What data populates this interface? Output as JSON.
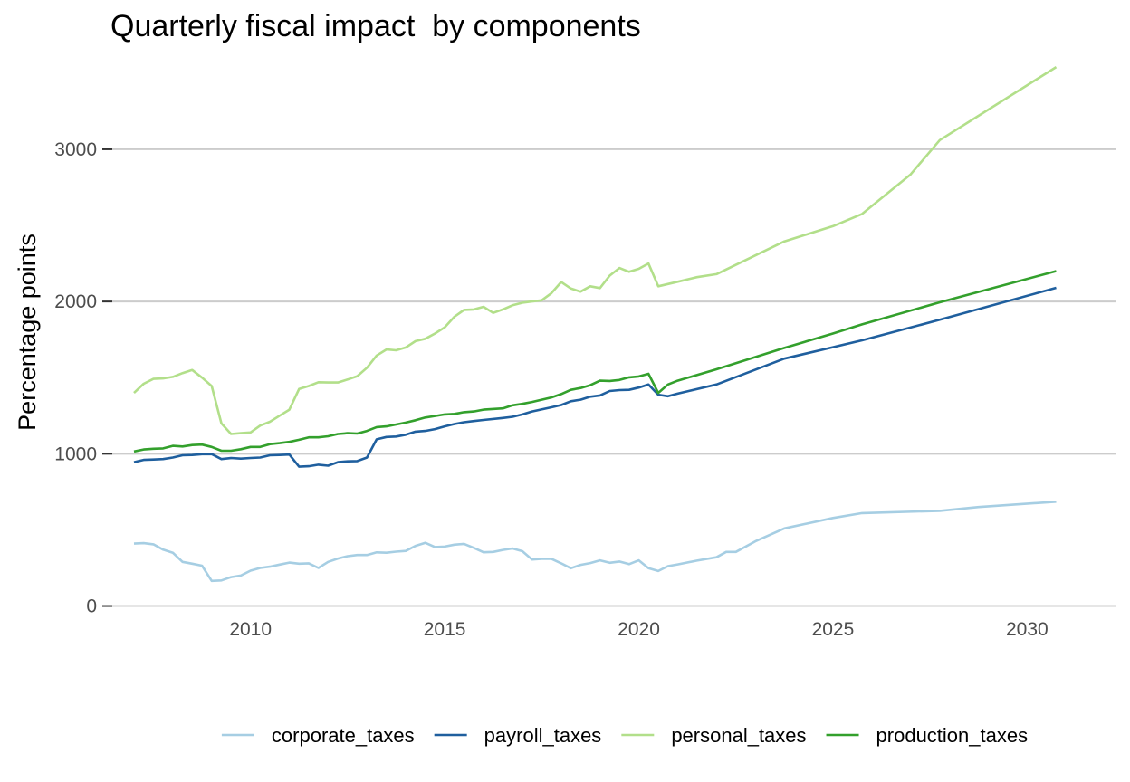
{
  "chart_data": {
    "type": "line",
    "title": "Quarterly fiscal impact  by components",
    "xlabel": "",
    "ylabel": "Percentage points",
    "xlim": [
      2006.3,
      2032.3
    ],
    "ylim": [
      -80,
      3600
    ],
    "x_ticks": [
      2010,
      2015,
      2020,
      2025,
      2030
    ],
    "x_tick_labels": [
      "2010",
      "2015",
      "2020",
      "2025",
      "2030"
    ],
    "y_ticks": [
      0,
      1000,
      2000,
      3000
    ],
    "y_tick_labels": [
      "0",
      "1000",
      "2000",
      "3000"
    ],
    "grid": "horizontal major lines only",
    "legend_position": "bottom",
    "series": [
      {
        "name": "corporate_taxes",
        "color": "#a6cee3",
        "x": [
          2007.0,
          2007.25,
          2007.5,
          2007.75,
          2008.0,
          2008.25,
          2008.5,
          2008.75,
          2009.0,
          2009.25,
          2009.5,
          2009.75,
          2010.0,
          2010.25,
          2010.5,
          2010.75,
          2011.0,
          2011.25,
          2011.5,
          2011.75,
          2012.0,
          2012.25,
          2012.5,
          2012.75,
          2013.0,
          2013.25,
          2013.5,
          2013.75,
          2014.0,
          2014.25,
          2014.5,
          2014.75,
          2015.0,
          2015.25,
          2015.5,
          2015.75,
          2016.0,
          2016.25,
          2016.5,
          2016.75,
          2017.0,
          2017.25,
          2017.5,
          2017.75,
          2018.0,
          2018.25,
          2018.5,
          2018.75,
          2019.0,
          2019.25,
          2019.5,
          2019.75,
          2020.0,
          2020.25,
          2020.5,
          2020.75,
          2021.0,
          2021.5,
          2022.0,
          2022.25,
          2022.5,
          2023.0,
          2023.75,
          2025.0,
          2025.75,
          2027.75,
          2028.75,
          2030.75
        ],
        "y": [
          410,
          413,
          405,
          370,
          350,
          290,
          278,
          265,
          165,
          168,
          190,
          200,
          232,
          250,
          258,
          272,
          285,
          278,
          280,
          250,
          290,
          312,
          327,
          335,
          335,
          352,
          350,
          357,
          362,
          395,
          415,
          387,
          390,
          403,
          408,
          382,
          353,
          355,
          368,
          378,
          360,
          305,
          310,
          310,
          280,
          248,
          270,
          282,
          300,
          284,
          292,
          275,
          300,
          248,
          230,
          262,
          273,
          298,
          320,
          355,
          355,
          425,
          510,
          578,
          610,
          625,
          650,
          685
        ]
      },
      {
        "name": "payroll_taxes",
        "color": "#1f5f9e",
        "x": [
          2007.0,
          2007.25,
          2007.5,
          2007.75,
          2008.0,
          2008.25,
          2008.5,
          2008.75,
          2009.0,
          2009.25,
          2009.5,
          2009.75,
          2010.0,
          2010.25,
          2010.5,
          2010.75,
          2011.0,
          2011.25,
          2011.5,
          2011.75,
          2012.0,
          2012.25,
          2012.5,
          2012.75,
          2013.0,
          2013.25,
          2013.5,
          2013.75,
          2014.0,
          2014.25,
          2014.5,
          2014.75,
          2015.0,
          2015.25,
          2015.5,
          2015.75,
          2016.0,
          2016.5,
          2016.75,
          2017.0,
          2017.25,
          2017.75,
          2018.0,
          2018.25,
          2018.5,
          2018.75,
          2019.0,
          2019.25,
          2019.5,
          2019.75,
          2020.0,
          2020.25,
          2020.5,
          2020.75,
          2021.0,
          2022.0,
          2023.75,
          2025.0,
          2025.75,
          2027.75,
          2030.75
        ],
        "y": [
          945,
          960,
          962,
          965,
          975,
          990,
          992,
          997,
          998,
          965,
          972,
          968,
          972,
          975,
          990,
          992,
          995,
          915,
          918,
          928,
          922,
          945,
          950,
          952,
          975,
          1095,
          1110,
          1113,
          1125,
          1145,
          1150,
          1162,
          1180,
          1195,
          1207,
          1215,
          1222,
          1235,
          1243,
          1258,
          1278,
          1305,
          1320,
          1345,
          1355,
          1375,
          1383,
          1412,
          1418,
          1420,
          1435,
          1455,
          1388,
          1378,
          1395,
          1455,
          1625,
          1700,
          1745,
          1880,
          2090
        ]
      },
      {
        "name": "personal_taxes",
        "color": "#b2df8a",
        "x": [
          2007.0,
          2007.25,
          2007.5,
          2007.75,
          2008.0,
          2008.25,
          2008.5,
          2008.75,
          2009.0,
          2009.25,
          2009.5,
          2009.75,
          2010.0,
          2010.25,
          2010.5,
          2010.75,
          2011.0,
          2011.25,
          2011.5,
          2011.75,
          2012.0,
          2012.25,
          2012.5,
          2012.75,
          2013.0,
          2013.25,
          2013.5,
          2013.75,
          2014.0,
          2014.25,
          2014.5,
          2014.75,
          2015.0,
          2015.25,
          2015.5,
          2015.75,
          2016.0,
          2016.25,
          2016.5,
          2016.75,
          2017.0,
          2017.25,
          2017.5,
          2017.75,
          2018.0,
          2018.25,
          2018.5,
          2018.75,
          2019.0,
          2019.25,
          2019.5,
          2019.75,
          2020.0,
          2020.25,
          2020.5,
          2020.75,
          2021.0,
          2021.5,
          2022.0,
          2023.75,
          2025.0,
          2025.75,
          2027.0,
          2027.75,
          2030.75
        ],
        "y": [
          1400,
          1460,
          1492,
          1495,
          1505,
          1530,
          1550,
          1500,
          1445,
          1200,
          1130,
          1135,
          1140,
          1185,
          1210,
          1250,
          1290,
          1425,
          1445,
          1470,
          1468,
          1468,
          1488,
          1510,
          1565,
          1645,
          1685,
          1680,
          1698,
          1740,
          1755,
          1790,
          1830,
          1900,
          1945,
          1948,
          1965,
          1925,
          1948,
          1975,
          1992,
          2000,
          2008,
          2055,
          2128,
          2085,
          2065,
          2100,
          2088,
          2170,
          2220,
          2195,
          2215,
          2250,
          2100,
          2115,
          2130,
          2160,
          2180,
          2395,
          2495,
          2575,
          2835,
          3060,
          3540
        ]
      },
      {
        "name": "production_taxes",
        "color": "#33a02c",
        "x": [
          2007.0,
          2007.25,
          2007.5,
          2007.75,
          2008.0,
          2008.25,
          2008.5,
          2008.75,
          2009.0,
          2009.25,
          2009.5,
          2009.75,
          2010.0,
          2010.25,
          2010.5,
          2010.75,
          2011.0,
          2011.25,
          2011.5,
          2011.75,
          2012.0,
          2012.25,
          2012.5,
          2012.75,
          2013.0,
          2013.25,
          2013.5,
          2013.75,
          2014.0,
          2014.25,
          2014.5,
          2014.75,
          2015.0,
          2015.25,
          2015.5,
          2015.75,
          2016.0,
          2016.5,
          2016.75,
          2017.0,
          2017.25,
          2017.75,
          2018.0,
          2018.25,
          2018.5,
          2018.75,
          2019.0,
          2019.25,
          2019.5,
          2019.75,
          2020.0,
          2020.25,
          2020.5,
          2020.75,
          2021.0,
          2022.0,
          2023.75,
          2025.0,
          2025.75,
          2027.75,
          2030.75
        ],
        "y": [
          1015,
          1028,
          1033,
          1035,
          1052,
          1048,
          1057,
          1060,
          1045,
          1020,
          1020,
          1030,
          1045,
          1045,
          1063,
          1070,
          1078,
          1092,
          1108,
          1108,
          1115,
          1130,
          1135,
          1133,
          1150,
          1175,
          1180,
          1192,
          1205,
          1220,
          1238,
          1248,
          1258,
          1262,
          1273,
          1278,
          1290,
          1298,
          1318,
          1328,
          1340,
          1370,
          1392,
          1420,
          1432,
          1450,
          1480,
          1478,
          1485,
          1502,
          1508,
          1525,
          1400,
          1455,
          1480,
          1555,
          1695,
          1790,
          1850,
          1995,
          2200
        ]
      }
    ]
  }
}
